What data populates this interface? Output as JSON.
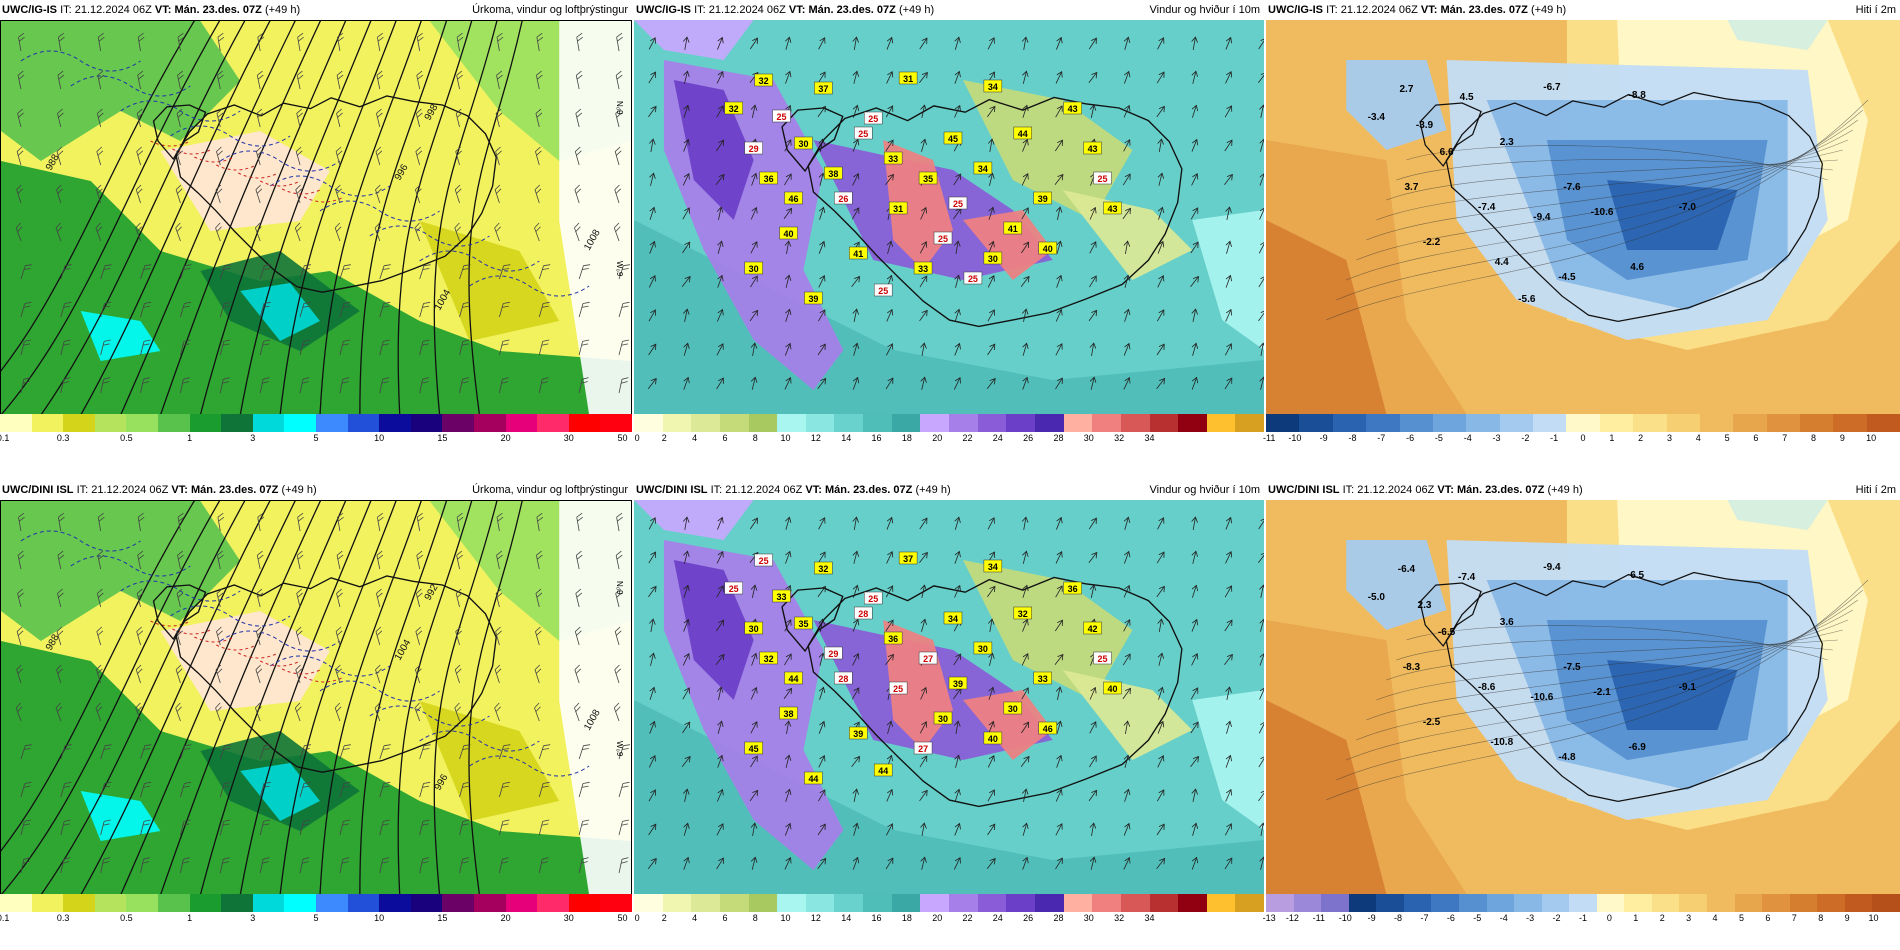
{
  "panels": [
    {
      "id": "p1",
      "model": "UWC/IG-IS",
      "it_label": "IT:",
      "init": "21.12.2024 06Z",
      "vt_label": "VT:",
      "valid": "Mán. 23.des. 07Z",
      "lead": "(+49 h)",
      "title": "Úrkoma, vindur og loftþrýstingur",
      "type": "precip",
      "colorbar": {
        "colors": [
          "#ffffc0",
          "#f2f25f",
          "#d4d41a",
          "#b6e35e",
          "#98e15f",
          "#58c24c",
          "#1a9c2e",
          "#0e7438",
          "#00d9d9",
          "#00ffff",
          "#3d8aff",
          "#2350d9",
          "#0c0c9c",
          "#19007c",
          "#6b0066",
          "#a5005e",
          "#e6007a",
          "#ff2a6a",
          "#ff0000",
          "#ff0010"
        ],
        "ticks": [
          "0.1",
          "0.3",
          "0.5",
          "1",
          "3",
          "5",
          "10",
          "15",
          "20",
          "30",
          "50"
        ]
      },
      "isobars": [
        "988",
        "998",
        "996",
        "1008",
        "1004"
      ],
      "lat_label": "N₀9",
      "lon_label": "W₀9"
    },
    {
      "id": "p2",
      "model": "UWC/IG-IS",
      "it_label": "IT:",
      "init": "21.12.2024 06Z",
      "vt_label": "VT:",
      "valid": "Mán. 23.des. 07Z",
      "lead": "(+49 h)",
      "title": "Vindur og hviður í 10m",
      "type": "wind",
      "colorbar": {
        "colors": [
          "#ffffe0",
          "#f0f5b0",
          "#dce996",
          "#c5db7a",
          "#a8c860",
          "#a9f5f0",
          "#8ae6e0",
          "#6ad2cc",
          "#4fbdb8",
          "#3aa8a4",
          "#c8a8ff",
          "#a77fe8",
          "#8a5cd8",
          "#6b3fc8",
          "#4a28b0",
          "#ffb0a0",
          "#f08080",
          "#d85858",
          "#b83030",
          "#900010",
          "#ffc030",
          "#d8a020"
        ],
        "ticks": [
          "0",
          "2",
          "4",
          "6",
          "8",
          "10",
          "12",
          "14",
          "16",
          "18",
          "20",
          "22",
          "24",
          "26",
          "28",
          "30",
          "32",
          "34"
        ]
      },
      "gusts": [
        "32",
        "32",
        "25",
        "37",
        "31",
        "34",
        "30",
        "25",
        "36",
        "35",
        "26",
        "31",
        "25",
        "39",
        "40",
        "41",
        "33",
        "30",
        "25",
        "39",
        "40",
        "43",
        "43",
        "30",
        "45",
        "44",
        "43",
        "38",
        "34",
        "33",
        "25",
        "46",
        "41",
        "25",
        "25",
        "29",
        "25"
      ]
    },
    {
      "id": "p3",
      "model": "UWC/IG-IS",
      "it_label": "IT:",
      "init": "21.12.2024 06Z",
      "vt_label": "VT:",
      "valid": "Mán. 23.des. 07Z",
      "lead": "(+49 h)",
      "title": "Hiti í 2m",
      "type": "temp",
      "colorbar": {
        "colors": [
          "#0d3a7a",
          "#1a4f97",
          "#2a63b0",
          "#3e78c3",
          "#5690d0",
          "#6ea5dc",
          "#88b8e6",
          "#a4cbef",
          "#c2dcf6",
          "#fff8c8",
          "#ffeea0",
          "#fbe08a",
          "#f6cf72",
          "#f0bb5e",
          "#e8a64c",
          "#e0923e",
          "#d67e30",
          "#cc6c26",
          "#c05a1e"
        ],
        "ticks": [
          "-11",
          "-10",
          "-9",
          "-8",
          "-7",
          "-6",
          "-5",
          "-4",
          "-3",
          "-2",
          "-1",
          "0",
          "1",
          "2",
          "3",
          "4",
          "5",
          "6",
          "7",
          "8",
          "9",
          "10"
        ]
      },
      "temps": [
        "2.7",
        "-3.4",
        "-3.9",
        "4.5",
        "-6.7",
        "-8.8",
        "6.6",
        "2.3",
        "3.7",
        "-7.6",
        "-7.4",
        "-9.4",
        "-10.6",
        "-7.0",
        "-2.2",
        "4.4",
        "-4.5",
        "4.6",
        "-5.6"
      ]
    },
    {
      "id": "p4",
      "model": "UWC/DINI ISL",
      "it_label": "IT:",
      "init": "21.12.2024 06Z",
      "vt_label": "VT:",
      "valid": "Mán. 23.des. 07Z",
      "lead": "(+49 h)",
      "title": "Úrkoma, vindur og loftþrýstingur",
      "type": "precip",
      "colorbar": {
        "colors": [
          "#ffffc0",
          "#f2f25f",
          "#d4d41a",
          "#b6e35e",
          "#98e15f",
          "#58c24c",
          "#1a9c2e",
          "#0e7438",
          "#00d9d9",
          "#00ffff",
          "#3d8aff",
          "#2350d9",
          "#0c0c9c",
          "#19007c",
          "#6b0066",
          "#a5005e",
          "#e6007a",
          "#ff2a6a",
          "#ff0000",
          "#ff0010"
        ],
        "ticks": [
          "0.1",
          "0.3",
          "0.5",
          "1",
          "3",
          "5",
          "10",
          "15",
          "20",
          "30",
          "50"
        ]
      },
      "isobars": [
        "988",
        "992",
        "1004",
        "1008",
        "996"
      ],
      "lat_label": "N₀9",
      "lon_label": "W₀9"
    },
    {
      "id": "p5",
      "model": "UWC/DINI ISL",
      "it_label": "IT:",
      "init": "21.12.2024 06Z",
      "vt_label": "VT:",
      "valid": "Mán. 23.des. 07Z",
      "lead": "(+49 h)",
      "title": "Vindur og hviður í 10m",
      "type": "wind",
      "colorbar": {
        "colors": [
          "#ffffe0",
          "#f0f5b0",
          "#dce996",
          "#c5db7a",
          "#a8c860",
          "#a9f5f0",
          "#8ae6e0",
          "#6ad2cc",
          "#4fbdb8",
          "#3aa8a4",
          "#c8a8ff",
          "#a77fe8",
          "#8a5cd8",
          "#6b3fc8",
          "#4a28b0",
          "#ffb0a0",
          "#f08080",
          "#d85858",
          "#b83030",
          "#900010",
          "#ffc030",
          "#d8a020"
        ],
        "ticks": [
          "0",
          "2",
          "4",
          "6",
          "8",
          "10",
          "12",
          "14",
          "16",
          "18",
          "20",
          "22",
          "24",
          "26",
          "28",
          "30",
          "32",
          "34"
        ]
      },
      "gusts": [
        "25",
        "25",
        "33",
        "32",
        "37",
        "34",
        "35",
        "28",
        "32",
        "27",
        "28",
        "25",
        "39",
        "33",
        "38",
        "39",
        "27",
        "40",
        "44",
        "44",
        "46",
        "42",
        "40",
        "45",
        "34",
        "32",
        "36",
        "29",
        "30",
        "36",
        "30",
        "44",
        "30",
        "25",
        "25",
        "30"
      ]
    },
    {
      "id": "p6",
      "model": "UWC/DINI ISL",
      "it_label": "IT:",
      "init": "21.12.2024 06Z",
      "vt_label": "VT:",
      "valid": "Mán. 23.des. 07Z",
      "lead": "(+49 h)",
      "title": "Hiti í 2m",
      "type": "temp",
      "colorbar": {
        "colors": [
          "#b89ee0",
          "#9c88d8",
          "#7d72cc",
          "#0d3a7a",
          "#1a4f97",
          "#2a63b0",
          "#3e78c3",
          "#5690d0",
          "#6ea5dc",
          "#88b8e6",
          "#a4cbef",
          "#c2dcf6",
          "#fff8c8",
          "#ffeea0",
          "#fbe08a",
          "#f6cf72",
          "#f0bb5e",
          "#e8a64c",
          "#e0923e",
          "#d67e30",
          "#cc6c26",
          "#c05a1e",
          "#b5501a"
        ],
        "ticks": [
          "-13",
          "-12",
          "-11",
          "-10",
          "-9",
          "-8",
          "-7",
          "-6",
          "-5",
          "-4",
          "-3",
          "-2",
          "-1",
          "0",
          "1",
          "2",
          "3",
          "4",
          "5",
          "6",
          "7",
          "8",
          "9",
          "10"
        ]
      },
      "temps": [
        "-6.4",
        "-5.0",
        "2.3",
        "-7.4",
        "-9.4",
        "6.5",
        "-6.5",
        "3.6",
        "-8.3",
        "-7.5",
        "-8.6",
        "-10.6",
        "-2.1",
        "-9.1",
        "-2.5",
        "-10.8",
        "-4.8",
        "-6.9"
      ]
    }
  ]
}
